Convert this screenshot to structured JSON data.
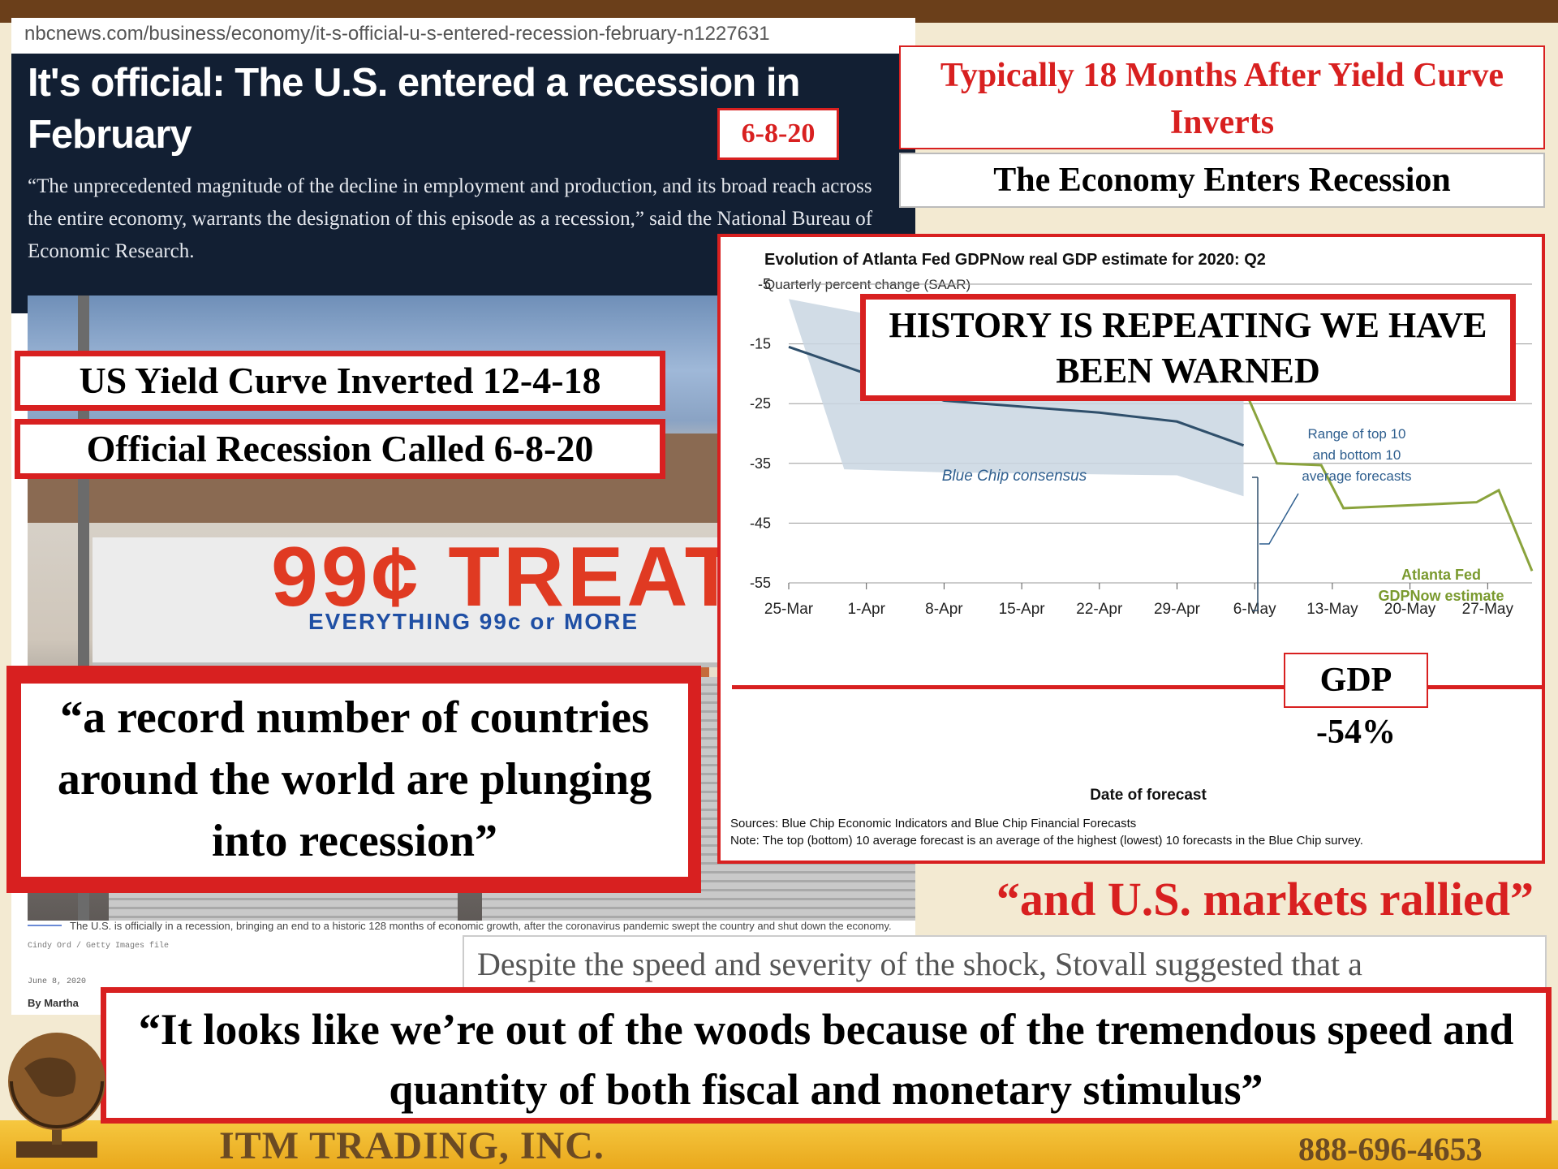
{
  "article": {
    "url": "nbcnews.com/business/economy/it-s-official-u-s-entered-recession-february-n1227631",
    "headline": "It's official: The U.S. entered a recession in February",
    "dek": "“The unprecedented magnitude of the decline in employment and production, and its broad reach across the entire economy, warrants the designation of this episode as a recession,” said the National Bureau of Economic Research.",
    "date_box": "6-8-20",
    "photo": {
      "sign_main": "99¢ TREAT",
      "sign_sub": "EVERYTHING 99c or MORE"
    },
    "caption": "The U.S. is officially in a recession, bringing an end to a historic 128 months of economic growth, after the coronavirus pandemic swept the country and shut down the economy.",
    "caption_credit": "Cindy Ord / Getty Images file",
    "date": "June 8, 2020",
    "byline": "By Martha"
  },
  "callouts": {
    "yield_curve": "US Yield Curve Inverted 12-4-18",
    "official": "Official Recession Called 6-8-20",
    "quote_countries": "“a record number of countries around the world are plunging into recession”",
    "typically": "Typically 18 Months After Yield Curve Inverts",
    "economy": "The Economy Enters Recession",
    "history": "HISTORY IS REPEATING WE HAVE BEEN WARNED",
    "gdp": "GDP -54%",
    "rallied": "“and U.S. markets rallied”",
    "despite": "Despite the speed and severity of the shock, Stovall suggested that a",
    "quote_woods": "“It looks like we’re out of the woods because of the tremendous speed and quantity of both fiscal and monetary stimulus”"
  },
  "footer": {
    "company": "ITM TRADING, INC.",
    "phone": "888-696-4653"
  },
  "colors": {
    "accent_red": "#d82020",
    "footer_brown": "#6b4a23",
    "gdp_green": "#8aa33c",
    "bluechip": "#2f4f6b"
  },
  "chart_data": {
    "type": "line",
    "title": "Evolution of Atlanta Fed GDPNow real GDP estimate for 2020: Q2",
    "subtitle": "Quarterly percent change (SAAR)",
    "xlabel": "Date of forecast",
    "ylabel": "",
    "x_ticks": [
      "25-Mar",
      "1-Apr",
      "8-Apr",
      "15-Apr",
      "22-Apr",
      "29-Apr",
      "6-May",
      "13-May",
      "20-May",
      "27-May"
    ],
    "y_ticks": [
      -5,
      -15,
      -25,
      -35,
      -45,
      -55
    ],
    "ylim": [
      -55,
      -5
    ],
    "series": [
      {
        "name": "Blue Chip consensus",
        "points": [
          [
            "25-Mar",
            -15.5
          ],
          [
            "1-Apr",
            -20
          ],
          [
            "8-Apr",
            -24.5
          ],
          [
            "15-Apr",
            -25.5
          ],
          [
            "22-Apr",
            -26.5
          ],
          [
            "29-Apr",
            -28
          ],
          [
            "5-May",
            -32
          ]
        ]
      },
      {
        "name": "Atlanta Fed GDPNow estimate",
        "points": [
          [
            "30-Apr",
            -17
          ],
          [
            "4-May",
            -18
          ],
          [
            "8-May",
            -35
          ],
          [
            "12-May",
            -35.3
          ],
          [
            "14-May",
            -42.5
          ],
          [
            "20-May",
            -42
          ],
          [
            "26-May",
            -41.5
          ],
          [
            "28-May",
            -39.5
          ],
          [
            "31-May",
            -53
          ]
        ]
      }
    ],
    "band": {
      "name": "Range of top 10 and bottom 10 average forecasts",
      "upper": [
        [
          "25-Mar",
          -7.5
        ],
        [
          "5-May",
          -22
        ]
      ],
      "lower": [
        [
          "8-Apr",
          -36.5
        ],
        [
          "29-Apr",
          -37
        ],
        [
          "5-May",
          -40.5
        ]
      ]
    },
    "annotations": [
      "Blue Chip consensus",
      "Range of top 10 and bottom 10 average forecasts",
      "Atlanta Fed GDPNow estimate"
    ],
    "sources": "Sources: Blue Chip Economic Indicators and Blue Chip Financial Forecasts",
    "note": "Note: The top (bottom) 10 average forecast is an average of the highest (lowest) 10 forecasts in the Blue Chip survey."
  }
}
